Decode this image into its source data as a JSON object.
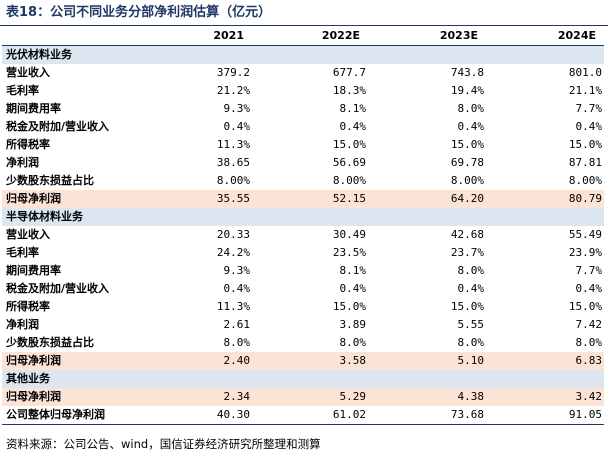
{
  "title": "表18：公司不同业务分部净利润估算（亿元）",
  "columns": [
    "",
    "2021",
    "2022E",
    "2023E",
    "2024E"
  ],
  "rows": [
    {
      "type": "section",
      "label": "光伏材料业务",
      "values": [
        "",
        "",
        "",
        ""
      ]
    },
    {
      "type": "data",
      "label": "营业收入",
      "values": [
        "379.2",
        "677.7",
        "743.8",
        "801.0"
      ]
    },
    {
      "type": "data",
      "label": "毛利率",
      "values": [
        "21.2%",
        "18.3%",
        "19.4%",
        "21.1%"
      ]
    },
    {
      "type": "data",
      "label": "期间费用率",
      "values": [
        "9.3%",
        "8.1%",
        "8.0%",
        "7.7%"
      ]
    },
    {
      "type": "data",
      "label": "税金及附加/营业收入",
      "values": [
        "0.4%",
        "0.4%",
        "0.4%",
        "0.4%"
      ]
    },
    {
      "type": "data",
      "label": "所得税率",
      "values": [
        "11.3%",
        "15.0%",
        "15.0%",
        "15.0%"
      ]
    },
    {
      "type": "data",
      "label": "净利润",
      "values": [
        "38.65",
        "56.69",
        "69.78",
        "87.81"
      ]
    },
    {
      "type": "data",
      "label": "少数股东损益占比",
      "values": [
        "8.00%",
        "8.00%",
        "8.00%",
        "8.00%"
      ]
    },
    {
      "type": "highlight",
      "label": "归母净利润",
      "values": [
        "35.55",
        "52.15",
        "64.20",
        "80.79"
      ]
    },
    {
      "type": "section",
      "label": "半导体材料业务",
      "values": [
        "",
        "",
        "",
        ""
      ]
    },
    {
      "type": "data",
      "label": "营业收入",
      "values": [
        "20.33",
        "30.49",
        "42.68",
        "55.49"
      ]
    },
    {
      "type": "data",
      "label": "毛利率",
      "values": [
        "24.2%",
        "23.5%",
        "23.7%",
        "23.9%"
      ]
    },
    {
      "type": "data",
      "label": "期间费用率",
      "values": [
        "9.3%",
        "8.1%",
        "8.0%",
        "7.7%"
      ]
    },
    {
      "type": "data",
      "label": "税金及附加/营业收入",
      "values": [
        "0.4%",
        "0.4%",
        "0.4%",
        "0.4%"
      ]
    },
    {
      "type": "data",
      "label": "所得税率",
      "values": [
        "11.3%",
        "15.0%",
        "15.0%",
        "15.0%"
      ]
    },
    {
      "type": "data",
      "label": "净利润",
      "values": [
        "2.61",
        "3.89",
        "5.55",
        "7.42"
      ]
    },
    {
      "type": "data",
      "label": "少数股东损益占比",
      "values": [
        "8.0%",
        "8.0%",
        "8.0%",
        "8.0%"
      ]
    },
    {
      "type": "highlight",
      "label": "归母净利润",
      "values": [
        "2.40",
        "3.58",
        "5.10",
        "6.83"
      ]
    },
    {
      "type": "section",
      "label": "其他业务",
      "values": [
        "",
        "",
        "",
        ""
      ]
    },
    {
      "type": "highlight",
      "label": "归母净利润",
      "values": [
        "2.34",
        "5.29",
        "4.38",
        "3.42"
      ]
    },
    {
      "type": "data",
      "label": "公司整体归母净利润",
      "values": [
        "40.30",
        "61.02",
        "73.68",
        "91.05"
      ]
    }
  ],
  "source": "资料来源：公司公告、wind，国信证券经济研究所整理和测算",
  "colors": {
    "title": "#1f3864",
    "section_bg": "#dce6f1",
    "highlight_bg": "#fbe4d5"
  }
}
